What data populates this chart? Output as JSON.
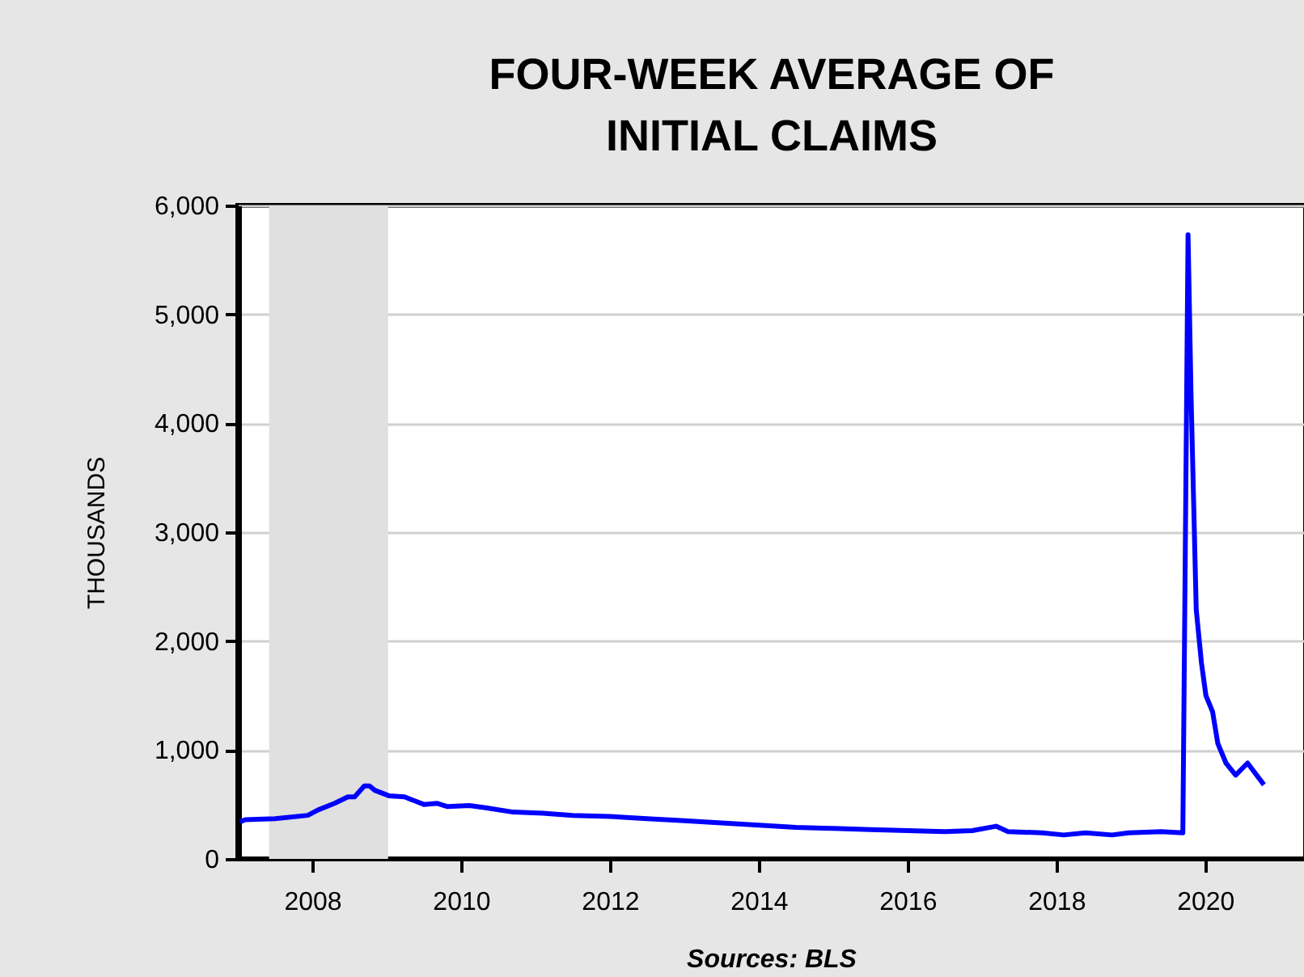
{
  "chart_data": {
    "type": "line",
    "title": "FOUR-WEEK AVERAGE OF\nINITIAL CLAIMS",
    "ylabel": "THOUSANDS",
    "annotations": [
      "Sources: BLS"
    ],
    "series": [
      {
        "color": "#0000ff",
        "x": [
          2007.53,
          2007.6,
          2008.0,
          2008.44,
          2008.58,
          2008.8,
          2008.98,
          2009.07,
          2009.2,
          2009.27,
          2009.34,
          2009.53,
          2009.74,
          2010.0,
          2010.18,
          2010.32,
          2010.61,
          2010.83,
          2011.2,
          2011.6,
          2012.0,
          2012.5,
          2013.0,
          2013.5,
          2014.0,
          2014.5,
          2015.0,
          2015.5,
          2016.0,
          2016.5,
          2017.0,
          2017.37,
          2017.69,
          2017.85,
          2018.31,
          2018.6,
          2018.89,
          2019.25,
          2019.47,
          2019.91,
          2020.2,
          2020.27,
          2020.31,
          2020.38,
          2020.45,
          2020.51,
          2020.6,
          2020.67,
          2020.78,
          2020.91,
          2021.07,
          2021.29
        ],
        "values": [
          340,
          360,
          370,
          400,
          450,
          510,
          570,
          570,
          670,
          670,
          630,
          580,
          570,
          500,
          510,
          480,
          490,
          470,
          430,
          420,
          400,
          390,
          370,
          350,
          330,
          310,
          290,
          280,
          270,
          260,
          250,
          260,
          300,
          250,
          240,
          220,
          240,
          220,
          240,
          250,
          240,
          5730,
          4270,
          2290,
          1800,
          1500,
          1350,
          1060,
          880,
          770,
          880,
          680
        ]
      }
    ],
    "xlim": [
      2007.5,
      2021.85
    ],
    "xticks": [
      {
        "value": 2008.5,
        "label": "2008"
      },
      {
        "value": 2010.5,
        "label": "2010"
      },
      {
        "value": 2012.5,
        "label": "2012"
      },
      {
        "value": 2014.5,
        "label": "2014"
      },
      {
        "value": 2016.5,
        "label": "2016"
      },
      {
        "value": 2018.5,
        "label": "2018"
      },
      {
        "value": 2020.5,
        "label": "2020"
      }
    ],
    "ylim": [
      0,
      6000
    ],
    "yticks": [
      0,
      {
        "value": 1000,
        "label": "1,000"
      },
      {
        "value": 2000,
        "label": "2,000"
      },
      {
        "value": 3000,
        "label": "3,000"
      },
      {
        "value": 4000,
        "label": "4,000"
      },
      {
        "value": 5000,
        "label": "5,000"
      },
      {
        "value": 6000,
        "label": "6,000"
      }
    ],
    "bands": [
      {
        "axis": "x",
        "from": 2007.92,
        "to": 2009.52,
        "color": "#e0e0e0"
      }
    ],
    "grid": "y",
    "line_style": "solid"
  }
}
